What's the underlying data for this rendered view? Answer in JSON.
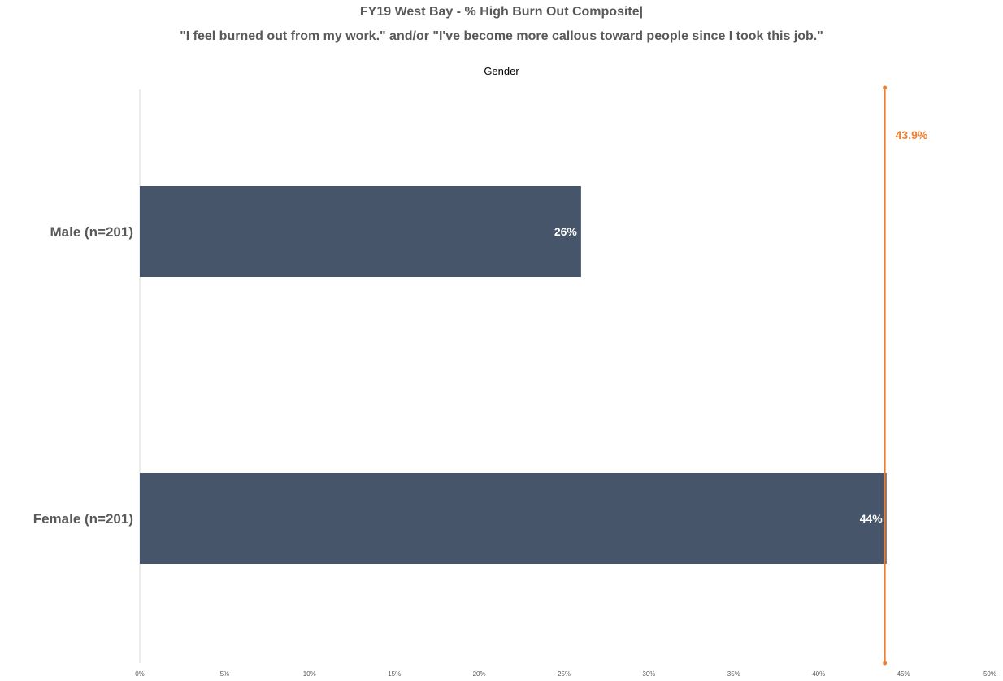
{
  "chart_data": {
    "type": "bar",
    "orientation": "horizontal",
    "title": "FY19 West Bay - % High Burn Out Composite|",
    "subtitle": "\"I feel burned out from my work.\" and/or \"I've become more callous toward people since I took this job.\"",
    "legend_title": "Gender",
    "categories": [
      "Male (n=201)",
      "Female (n=201)"
    ],
    "values": [
      26,
      44
    ],
    "data_labels": [
      "26%",
      "44%"
    ],
    "xlim": [
      0,
      50
    ],
    "x_ticks": [
      0,
      5,
      10,
      15,
      20,
      25,
      30,
      35,
      40,
      45,
      50
    ],
    "x_tick_labels": [
      "0%",
      "5%",
      "10%",
      "15%",
      "20%",
      "25%",
      "30%",
      "35%",
      "40%",
      "45%",
      "50%"
    ],
    "reference_line": {
      "value": 43.9,
      "label": "43.9%"
    },
    "colors": {
      "bar": "#465569",
      "reference": "#ED7D31",
      "axis": "#D9D9D9"
    },
    "grid": false
  }
}
